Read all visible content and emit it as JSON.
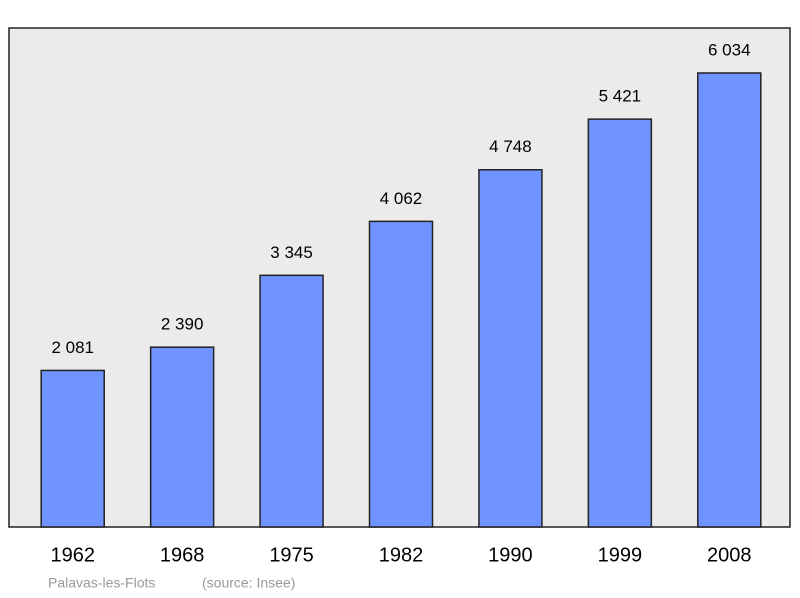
{
  "chart_data": {
    "type": "bar",
    "categories": [
      "1962",
      "1968",
      "1975",
      "1982",
      "1990",
      "1999",
      "2008"
    ],
    "values": [
      2081,
      2390,
      3345,
      4062,
      4748,
      5421,
      6034
    ],
    "value_labels": [
      "2 081",
      "2 390",
      "3 345",
      "4 062",
      "4 748",
      "5 421",
      "6 034"
    ],
    "color": "#7094ff",
    "place": "Palavas-les-Flots",
    "source": "(source: Insee)"
  }
}
